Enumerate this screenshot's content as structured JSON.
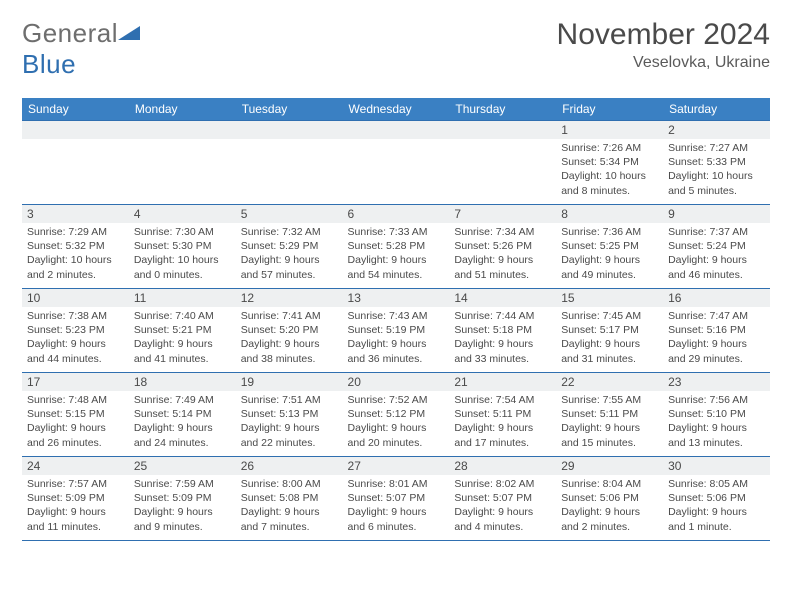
{
  "brand": {
    "part1": "General",
    "part2": "Blue"
  },
  "title": "November 2024",
  "location": "Veselovka, Ukraine",
  "colors": {
    "header_bg": "#3a80c3",
    "border": "#2f6fb0",
    "dayrow_bg": "#eef0f1",
    "text": "#4a4a4a",
    "brand_gray": "#6e6e6e",
    "brand_blue": "#2f6fb0",
    "page_bg": "#ffffff"
  },
  "typography": {
    "title_fontsize": 30,
    "location_fontsize": 16,
    "dayhead_fontsize": 12,
    "daynum_fontsize": 12,
    "body_fontsize": 10.5
  },
  "day_names": [
    "Sunday",
    "Monday",
    "Tuesday",
    "Wednesday",
    "Thursday",
    "Friday",
    "Saturday"
  ],
  "weeks": [
    [
      {
        "n": "",
        "sr": "",
        "ss": "",
        "dl": ""
      },
      {
        "n": "",
        "sr": "",
        "ss": "",
        "dl": ""
      },
      {
        "n": "",
        "sr": "",
        "ss": "",
        "dl": ""
      },
      {
        "n": "",
        "sr": "",
        "ss": "",
        "dl": ""
      },
      {
        "n": "",
        "sr": "",
        "ss": "",
        "dl": ""
      },
      {
        "n": "1",
        "sr": "Sunrise: 7:26 AM",
        "ss": "Sunset: 5:34 PM",
        "dl": "Daylight: 10 hours and 8 minutes."
      },
      {
        "n": "2",
        "sr": "Sunrise: 7:27 AM",
        "ss": "Sunset: 5:33 PM",
        "dl": "Daylight: 10 hours and 5 minutes."
      }
    ],
    [
      {
        "n": "3",
        "sr": "Sunrise: 7:29 AM",
        "ss": "Sunset: 5:32 PM",
        "dl": "Daylight: 10 hours and 2 minutes."
      },
      {
        "n": "4",
        "sr": "Sunrise: 7:30 AM",
        "ss": "Sunset: 5:30 PM",
        "dl": "Daylight: 10 hours and 0 minutes."
      },
      {
        "n": "5",
        "sr": "Sunrise: 7:32 AM",
        "ss": "Sunset: 5:29 PM",
        "dl": "Daylight: 9 hours and 57 minutes."
      },
      {
        "n": "6",
        "sr": "Sunrise: 7:33 AM",
        "ss": "Sunset: 5:28 PM",
        "dl": "Daylight: 9 hours and 54 minutes."
      },
      {
        "n": "7",
        "sr": "Sunrise: 7:34 AM",
        "ss": "Sunset: 5:26 PM",
        "dl": "Daylight: 9 hours and 51 minutes."
      },
      {
        "n": "8",
        "sr": "Sunrise: 7:36 AM",
        "ss": "Sunset: 5:25 PM",
        "dl": "Daylight: 9 hours and 49 minutes."
      },
      {
        "n": "9",
        "sr": "Sunrise: 7:37 AM",
        "ss": "Sunset: 5:24 PM",
        "dl": "Daylight: 9 hours and 46 minutes."
      }
    ],
    [
      {
        "n": "10",
        "sr": "Sunrise: 7:38 AM",
        "ss": "Sunset: 5:23 PM",
        "dl": "Daylight: 9 hours and 44 minutes."
      },
      {
        "n": "11",
        "sr": "Sunrise: 7:40 AM",
        "ss": "Sunset: 5:21 PM",
        "dl": "Daylight: 9 hours and 41 minutes."
      },
      {
        "n": "12",
        "sr": "Sunrise: 7:41 AM",
        "ss": "Sunset: 5:20 PM",
        "dl": "Daylight: 9 hours and 38 minutes."
      },
      {
        "n": "13",
        "sr": "Sunrise: 7:43 AM",
        "ss": "Sunset: 5:19 PM",
        "dl": "Daylight: 9 hours and 36 minutes."
      },
      {
        "n": "14",
        "sr": "Sunrise: 7:44 AM",
        "ss": "Sunset: 5:18 PM",
        "dl": "Daylight: 9 hours and 33 minutes."
      },
      {
        "n": "15",
        "sr": "Sunrise: 7:45 AM",
        "ss": "Sunset: 5:17 PM",
        "dl": "Daylight: 9 hours and 31 minutes."
      },
      {
        "n": "16",
        "sr": "Sunrise: 7:47 AM",
        "ss": "Sunset: 5:16 PM",
        "dl": "Daylight: 9 hours and 29 minutes."
      }
    ],
    [
      {
        "n": "17",
        "sr": "Sunrise: 7:48 AM",
        "ss": "Sunset: 5:15 PM",
        "dl": "Daylight: 9 hours and 26 minutes."
      },
      {
        "n": "18",
        "sr": "Sunrise: 7:49 AM",
        "ss": "Sunset: 5:14 PM",
        "dl": "Daylight: 9 hours and 24 minutes."
      },
      {
        "n": "19",
        "sr": "Sunrise: 7:51 AM",
        "ss": "Sunset: 5:13 PM",
        "dl": "Daylight: 9 hours and 22 minutes."
      },
      {
        "n": "20",
        "sr": "Sunrise: 7:52 AM",
        "ss": "Sunset: 5:12 PM",
        "dl": "Daylight: 9 hours and 20 minutes."
      },
      {
        "n": "21",
        "sr": "Sunrise: 7:54 AM",
        "ss": "Sunset: 5:11 PM",
        "dl": "Daylight: 9 hours and 17 minutes."
      },
      {
        "n": "22",
        "sr": "Sunrise: 7:55 AM",
        "ss": "Sunset: 5:11 PM",
        "dl": "Daylight: 9 hours and 15 minutes."
      },
      {
        "n": "23",
        "sr": "Sunrise: 7:56 AM",
        "ss": "Sunset: 5:10 PM",
        "dl": "Daylight: 9 hours and 13 minutes."
      }
    ],
    [
      {
        "n": "24",
        "sr": "Sunrise: 7:57 AM",
        "ss": "Sunset: 5:09 PM",
        "dl": "Daylight: 9 hours and 11 minutes."
      },
      {
        "n": "25",
        "sr": "Sunrise: 7:59 AM",
        "ss": "Sunset: 5:09 PM",
        "dl": "Daylight: 9 hours and 9 minutes."
      },
      {
        "n": "26",
        "sr": "Sunrise: 8:00 AM",
        "ss": "Sunset: 5:08 PM",
        "dl": "Daylight: 9 hours and 7 minutes."
      },
      {
        "n": "27",
        "sr": "Sunrise: 8:01 AM",
        "ss": "Sunset: 5:07 PM",
        "dl": "Daylight: 9 hours and 6 minutes."
      },
      {
        "n": "28",
        "sr": "Sunrise: 8:02 AM",
        "ss": "Sunset: 5:07 PM",
        "dl": "Daylight: 9 hours and 4 minutes."
      },
      {
        "n": "29",
        "sr": "Sunrise: 8:04 AM",
        "ss": "Sunset: 5:06 PM",
        "dl": "Daylight: 9 hours and 2 minutes."
      },
      {
        "n": "30",
        "sr": "Sunrise: 8:05 AM",
        "ss": "Sunset: 5:06 PM",
        "dl": "Daylight: 9 hours and 1 minute."
      }
    ]
  ]
}
